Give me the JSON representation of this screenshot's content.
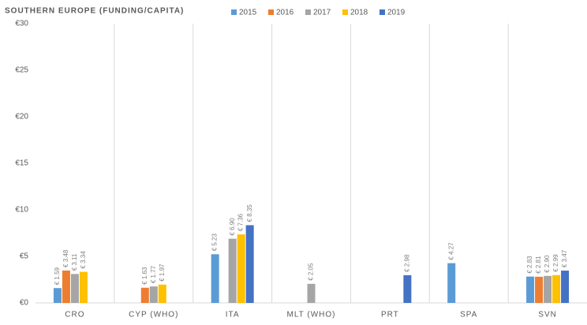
{
  "chart_data": {
    "type": "bar",
    "title": "SOUTHERN EUROPE (FUNDING/CAPITA)",
    "categories": [
      "CRO",
      "CYP (WHO)",
      "ITA",
      "MLT (WHO)",
      "PRT",
      "SPA",
      "SVN"
    ],
    "series": [
      {
        "name": "2015",
        "color": "#5b9bd5",
        "values": [
          1.59,
          null,
          5.23,
          null,
          null,
          4.27,
          2.83
        ],
        "value_labels": [
          "€ 1.59",
          null,
          "€ 5.23",
          null,
          null,
          "€ 4.27",
          "€ 2.83"
        ]
      },
      {
        "name": "2016",
        "color": "#ed7d31",
        "values": [
          3.48,
          1.63,
          null,
          null,
          null,
          null,
          2.81
        ],
        "value_labels": [
          "€ 3.48",
          "€ 1.63",
          null,
          null,
          null,
          null,
          "€ 2.81"
        ]
      },
      {
        "name": "2017",
        "color": "#a5a5a5",
        "values": [
          3.11,
          1.77,
          6.9,
          2.05,
          null,
          null,
          2.9
        ],
        "value_labels": [
          "€ 3.11",
          "€ 1.77",
          "€ 6.90",
          "€ 2.05",
          null,
          null,
          "€ 2.90"
        ]
      },
      {
        "name": "2018",
        "color": "#ffc000",
        "values": [
          3.34,
          1.97,
          7.36,
          null,
          null,
          null,
          2.99
        ],
        "value_labels": [
          "€ 3.34",
          "€ 1.97",
          "€ 7.36",
          null,
          null,
          null,
          "€ 2.99"
        ]
      },
      {
        "name": "2019",
        "color": "#4472c4",
        "values": [
          null,
          null,
          8.35,
          null,
          2.98,
          null,
          3.47
        ],
        "value_labels": [
          null,
          null,
          "€ 8.35",
          null,
          "€ 2.98",
          null,
          "€ 3.47"
        ]
      }
    ],
    "ylim": [
      0,
      30
    ],
    "yticks": [
      {
        "value": 0,
        "label": "€0"
      },
      {
        "value": 5,
        "label": "€5"
      },
      {
        "value": 10,
        "label": "€10"
      },
      {
        "value": 15,
        "label": "€15"
      },
      {
        "value": 20,
        "label": "€20"
      },
      {
        "value": 25,
        "label": "€25"
      },
      {
        "value": 30,
        "label": "€30"
      }
    ],
    "legend": "top"
  }
}
